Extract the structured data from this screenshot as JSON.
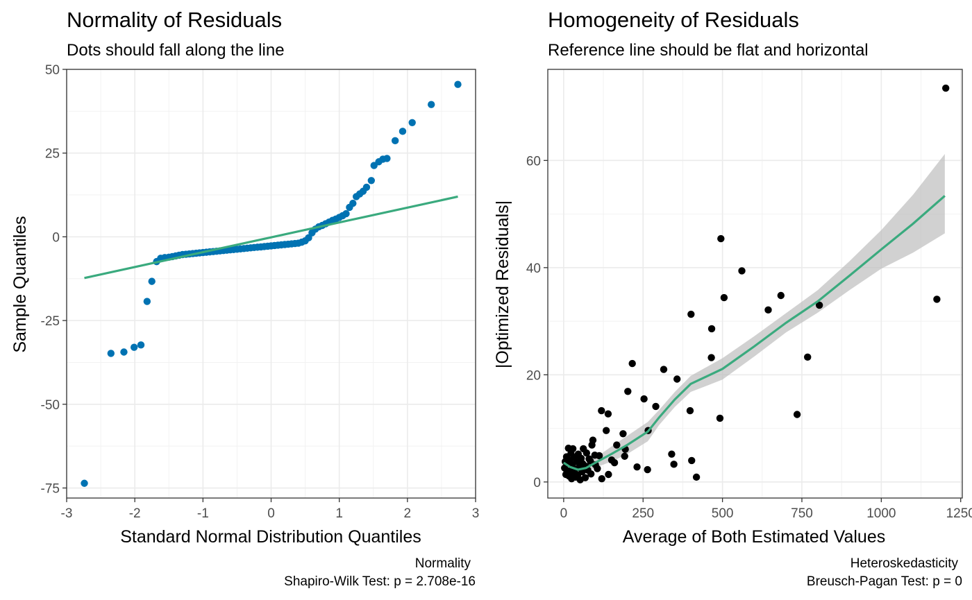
{
  "chart_data": [
    {
      "type": "scatter",
      "title": "Normality of Residuals",
      "subtitle": "Dots should fall along the line",
      "xlabel": "Standard Normal Distribution Quantiles",
      "ylabel": "Sample Quantiles",
      "xlim": [
        -3,
        3
      ],
      "ylim": [
        -78,
        50
      ],
      "xticks": [
        -3,
        -2,
        -1,
        0,
        1,
        2,
        3
      ],
      "xtick_labels": [
        "-3",
        "-2",
        "-1",
        "0",
        "1",
        "2",
        "3"
      ],
      "yticks": [
        -75,
        -50,
        -25,
        0,
        25,
        50
      ],
      "ytick_labels": [
        "-75",
        "-50",
        "-25",
        "0",
        "25",
        "50"
      ],
      "grid": true,
      "caption_lines": [
        "Normality",
        "Shapiro-Wilk Test: p = 2.708e-16"
      ],
      "point_color": "#0072B2",
      "line_color": "#3AAA7E",
      "points": [
        [
          -2.74,
          -73.6
        ],
        [
          -2.35,
          -34.8
        ],
        [
          -2.16,
          -34.4
        ],
        [
          -2.01,
          -33.0
        ],
        [
          -1.91,
          -32.3
        ],
        [
          -1.82,
          -19.3
        ],
        [
          -1.75,
          -13.3
        ],
        [
          -1.68,
          -7.4
        ],
        [
          -1.62,
          -6.4
        ],
        [
          -1.56,
          -6.2
        ],
        [
          -1.5,
          -6.1
        ],
        [
          -1.45,
          -5.9
        ],
        [
          -1.4,
          -5.7
        ],
        [
          -1.35,
          -5.5
        ],
        [
          -1.3,
          -5.3
        ],
        [
          -1.25,
          -5.2
        ],
        [
          -1.2,
          -5.1
        ],
        [
          -1.15,
          -5.0
        ],
        [
          -1.1,
          -4.9
        ],
        [
          -1.05,
          -4.8
        ],
        [
          -1.0,
          -4.7
        ],
        [
          -0.95,
          -4.6
        ],
        [
          -0.9,
          -4.5
        ],
        [
          -0.85,
          -4.4
        ],
        [
          -0.8,
          -4.3
        ],
        [
          -0.75,
          -4.2
        ],
        [
          -0.7,
          -4.1
        ],
        [
          -0.65,
          -4.0
        ],
        [
          -0.6,
          -3.9
        ],
        [
          -0.55,
          -3.8
        ],
        [
          -0.5,
          -3.7
        ],
        [
          -0.45,
          -3.6
        ],
        [
          -0.4,
          -3.5
        ],
        [
          -0.35,
          -3.4
        ],
        [
          -0.3,
          -3.3
        ],
        [
          -0.25,
          -3.2
        ],
        [
          -0.2,
          -3.1
        ],
        [
          -0.15,
          -3.0
        ],
        [
          -0.1,
          -2.9
        ],
        [
          -0.05,
          -2.8
        ],
        [
          0.0,
          -2.7
        ],
        [
          0.05,
          -2.6
        ],
        [
          0.1,
          -2.5
        ],
        [
          0.15,
          -2.4
        ],
        [
          0.2,
          -2.3
        ],
        [
          0.25,
          -2.2
        ],
        [
          0.3,
          -2.1
        ],
        [
          0.35,
          -2.0
        ],
        [
          0.4,
          -1.9
        ],
        [
          0.45,
          -1.6
        ],
        [
          0.5,
          -1.2
        ],
        [
          0.55,
          -0.3
        ],
        [
          0.6,
          1.2
        ],
        [
          0.65,
          2.3
        ],
        [
          0.7,
          3.0
        ],
        [
          0.75,
          3.4
        ],
        [
          0.8,
          3.9
        ],
        [
          0.85,
          4.4
        ],
        [
          0.9,
          4.9
        ],
        [
          0.95,
          5.3
        ],
        [
          1.0,
          5.8
        ],
        [
          1.05,
          6.3
        ],
        [
          1.1,
          6.9
        ],
        [
          1.15,
          8.8
        ],
        [
          1.2,
          10.0
        ],
        [
          1.25,
          12.0
        ],
        [
          1.3,
          12.8
        ],
        [
          1.35,
          13.6
        ],
        [
          1.4,
          14.8
        ],
        [
          1.47,
          16.8
        ],
        [
          1.51,
          21.3
        ],
        [
          1.58,
          22.4
        ],
        [
          1.64,
          23.2
        ],
        [
          1.7,
          23.4
        ],
        [
          1.82,
          28.7
        ],
        [
          1.93,
          31.5
        ],
        [
          2.07,
          34.1
        ],
        [
          2.35,
          39.5
        ],
        [
          2.74,
          45.5
        ]
      ],
      "line": [
        [
          -2.74,
          -12.3
        ],
        [
          2.74,
          12.0
        ]
      ]
    },
    {
      "type": "scatter",
      "title": "Homogeneity of Residuals",
      "subtitle": "Reference line should be flat and horizontal",
      "xlabel": "Average of Both Estimated Values",
      "ylabel": "|Optimized Residuals|",
      "xlim": [
        -50,
        1255
      ],
      "ylim": [
        -3,
        77
      ],
      "xticks": [
        0,
        250,
        500,
        750,
        1000,
        1250
      ],
      "xtick_labels": [
        "0",
        "250",
        "500",
        "750",
        "1000",
        "1250"
      ],
      "yticks": [
        0,
        20,
        40,
        60
      ],
      "ytick_labels": [
        "0",
        "20",
        "40",
        "60"
      ],
      "grid": true,
      "caption_lines": [
        "Heteroskedasticity",
        "Breusch-Pagan Test: p = 0"
      ],
      "point_color": "#000000",
      "line_color": "#3AAA7E",
      "band_color": "#BEBEBE",
      "points": [
        [
          1203,
          73.5
        ],
        [
          1175,
          34.1
        ],
        [
          805,
          33.0
        ],
        [
          768,
          23.3
        ],
        [
          735,
          12.6
        ],
        [
          684,
          34.8
        ],
        [
          644,
          32.1
        ],
        [
          561,
          39.4
        ],
        [
          505,
          34.4
        ],
        [
          495,
          45.4
        ],
        [
          492,
          11.9
        ],
        [
          466,
          28.6
        ],
        [
          465,
          23.2
        ],
        [
          401,
          31.3
        ],
        [
          398,
          13.3
        ],
        [
          403,
          4.0
        ],
        [
          418,
          0.9
        ],
        [
          357,
          19.2
        ],
        [
          347,
          3.3
        ],
        [
          340,
          5.2
        ],
        [
          315,
          21.0
        ],
        [
          290,
          14.1
        ],
        [
          266,
          9.6
        ],
        [
          264,
          2.3
        ],
        [
          253,
          15.5
        ],
        [
          231,
          2.8
        ],
        [
          216,
          22.1
        ],
        [
          202,
          16.9
        ],
        [
          194,
          6.1
        ],
        [
          187,
          9.0
        ],
        [
          192,
          4.8
        ],
        [
          167,
          6.9
        ],
        [
          160,
          3.6
        ],
        [
          151,
          4.1
        ],
        [
          140,
          12.7
        ],
        [
          134,
          9.6
        ],
        [
          141,
          1.4
        ],
        [
          119,
          13.3
        ],
        [
          120,
          0.6
        ],
        [
          112,
          4.9
        ],
        [
          106,
          2.5
        ],
        [
          98,
          5.0
        ],
        [
          92,
          7.8
        ],
        [
          89,
          6.9
        ],
        [
          86,
          1.5
        ],
        [
          80,
          4.3
        ],
        [
          76,
          2.2
        ],
        [
          72,
          5.4
        ],
        [
          68,
          0.8
        ],
        [
          64,
          3.1
        ],
        [
          62,
          6.2
        ],
        [
          58,
          1.9
        ],
        [
          55,
          4.4
        ],
        [
          52,
          0.4
        ],
        [
          49,
          2.7
        ],
        [
          46,
          5.2
        ],
        [
          44,
          1.3
        ],
        [
          41,
          3.8
        ],
        [
          38,
          0.9
        ],
        [
          36,
          2.4
        ],
        [
          33,
          4.6
        ],
        [
          31,
          1.6
        ],
        [
          29,
          6.2
        ],
        [
          27,
          3.2
        ],
        [
          25,
          0.6
        ],
        [
          23,
          5.3
        ],
        [
          21,
          2.1
        ],
        [
          19,
          4.0
        ],
        [
          17,
          1.1
        ],
        [
          15,
          6.3
        ],
        [
          13,
          3.5
        ],
        [
          11,
          2.0
        ],
        [
          9,
          4.7
        ],
        [
          7,
          1.4
        ],
        [
          5,
          3.8
        ],
        [
          3,
          2.6
        ],
        [
          60,
          3.4
        ],
        [
          70,
          2.9
        ],
        [
          84,
          3.9
        ],
        [
          100,
          3.2
        ]
      ],
      "smooth_line": [
        [
          0,
          3.6
        ],
        [
          20,
          2.8
        ],
        [
          45,
          2.3
        ],
        [
          70,
          2.6
        ],
        [
          100,
          3.6
        ],
        [
          150,
          5.2
        ],
        [
          200,
          6.9
        ],
        [
          265,
          9.4
        ],
        [
          300,
          12.0
        ],
        [
          350,
          15.4
        ],
        [
          400,
          18.3
        ],
        [
          500,
          21.1
        ],
        [
          600,
          25.3
        ],
        [
          700,
          29.7
        ],
        [
          800,
          33.7
        ],
        [
          900,
          38.5
        ],
        [
          1000,
          43.4
        ],
        [
          1100,
          48.2
        ],
        [
          1200,
          53.4
        ]
      ],
      "band_upper": [
        [
          0,
          4.8
        ],
        [
          20,
          3.8
        ],
        [
          45,
          3.1
        ],
        [
          70,
          3.4
        ],
        [
          100,
          4.5
        ],
        [
          150,
          6.6
        ],
        [
          200,
          8.6
        ],
        [
          265,
          11.2
        ],
        [
          300,
          13.4
        ],
        [
          350,
          16.8
        ],
        [
          400,
          19.8
        ],
        [
          500,
          23.1
        ],
        [
          600,
          27.2
        ],
        [
          700,
          31.5
        ],
        [
          800,
          35.8
        ],
        [
          900,
          41.2
        ],
        [
          1000,
          47.0
        ],
        [
          1100,
          53.6
        ],
        [
          1200,
          61.2
        ]
      ],
      "band_lower": [
        [
          0,
          2.4
        ],
        [
          20,
          1.8
        ],
        [
          45,
          1.5
        ],
        [
          70,
          1.8
        ],
        [
          100,
          2.7
        ],
        [
          150,
          3.8
        ],
        [
          200,
          5.2
        ],
        [
          265,
          7.6
        ],
        [
          300,
          10.6
        ],
        [
          350,
          14.0
        ],
        [
          400,
          16.8
        ],
        [
          500,
          19.1
        ],
        [
          600,
          23.4
        ],
        [
          700,
          27.9
        ],
        [
          800,
          31.6
        ],
        [
          900,
          35.8
        ],
        [
          1000,
          39.8
        ],
        [
          1100,
          42.8
        ],
        [
          1200,
          46.4
        ]
      ]
    }
  ]
}
